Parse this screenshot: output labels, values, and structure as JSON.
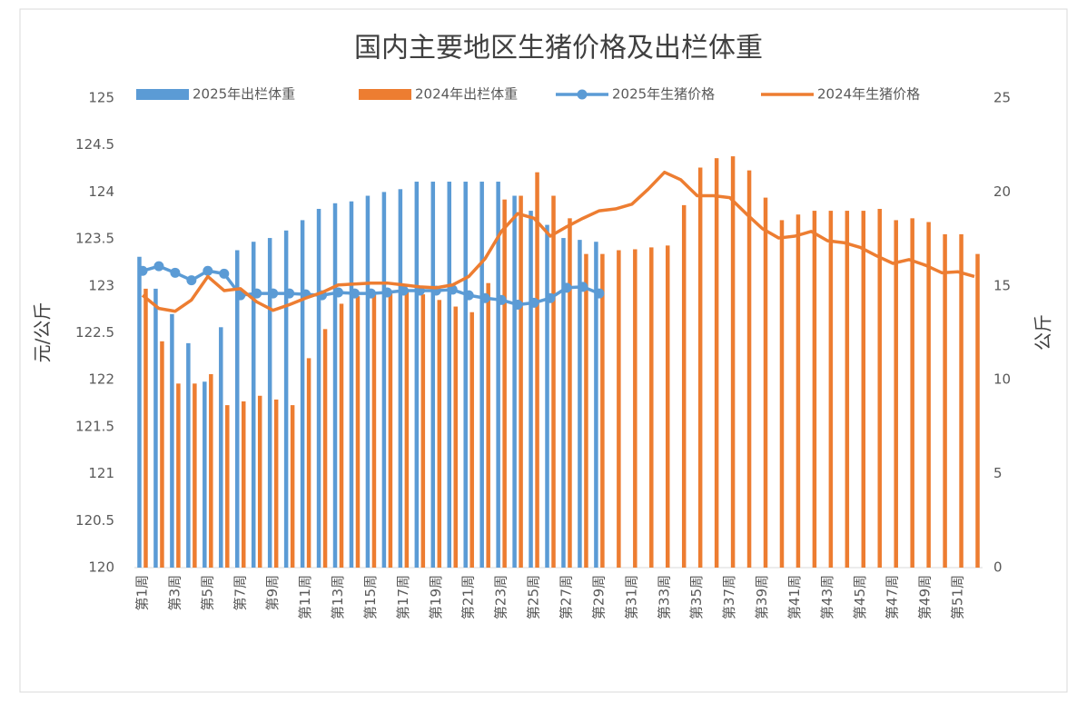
{
  "chart_data": {
    "type": "combo",
    "title": "国内主要地区生猪价格及出栏体重",
    "y_label": "元/公斤",
    "y2_label": "公斤",
    "categories": [
      "第1周",
      null,
      "第3周",
      null,
      "第5周",
      null,
      "第7周",
      null,
      "第9周",
      null,
      "第11周",
      null,
      "第13周",
      null,
      "第15周",
      null,
      "第17周",
      null,
      "第19周",
      null,
      "第21周",
      null,
      "第23周",
      null,
      "第25周",
      null,
      "第27周",
      null,
      "第29周",
      null,
      "第31周",
      null,
      "第33周",
      null,
      "第35周",
      null,
      "第37周",
      null,
      "第39周",
      null,
      "第41周",
      null,
      "第43周",
      null,
      "第45周",
      null,
      "第47周",
      null,
      "第49周",
      null,
      "第51周",
      null
    ],
    "ylim": [
      120,
      125
    ],
    "yticks": [
      120,
      120.5,
      121,
      121.5,
      122,
      122.5,
      123,
      123.5,
      124,
      124.5,
      125
    ],
    "y2lim": [
      0,
      25
    ],
    "y2ticks": [
      0,
      5,
      10,
      15,
      20,
      25
    ],
    "grid": false,
    "legend": "top",
    "series": [
      {
        "name": "2025年出栏体重",
        "type": "bar",
        "color": "#5b9bd5",
        "values": [
          123.31,
          122.97,
          122.7,
          122.39,
          121.98,
          122.56,
          123.38,
          123.47,
          123.51,
          123.59,
          123.7,
          123.82,
          123.88,
          123.9,
          123.96,
          124.0,
          124.03,
          124.11,
          124.11,
          124.11,
          124.11,
          124.11,
          124.11,
          123.96,
          123.8,
          123.65,
          123.51,
          123.49,
          123.47,
          null,
          null,
          null,
          null,
          null,
          null,
          null,
          null,
          null,
          null,
          null,
          null,
          null,
          null,
          null,
          null,
          null,
          null,
          null,
          null,
          null,
          null,
          null
        ]
      },
      {
        "name": "2024年出栏体重",
        "type": "bar",
        "color": "#ed7d31",
        "values": [
          122.97,
          122.41,
          121.96,
          121.96,
          122.06,
          121.73,
          121.77,
          121.83,
          121.79,
          121.73,
          122.23,
          122.54,
          122.81,
          122.89,
          122.93,
          122.95,
          122.95,
          122.91,
          122.85,
          122.78,
          122.72,
          123.03,
          123.92,
          123.96,
          124.21,
          123.96,
          123.72,
          123.34,
          123.34,
          123.38,
          123.39,
          123.41,
          123.43,
          123.86,
          124.26,
          124.36,
          124.38,
          124.23,
          123.94,
          123.7,
          123.76,
          123.8,
          123.8,
          123.8,
          123.8,
          123.82,
          123.7,
          123.72,
          123.68,
          123.55,
          123.55,
          123.34
        ]
      },
      {
        "name": "2025年生猪价格",
        "type": "line",
        "marker": true,
        "axis": "y2",
        "color": "#5b9bd5",
        "values": [
          15.8,
          16.05,
          15.7,
          15.3,
          15.8,
          15.65,
          14.5,
          14.6,
          14.6,
          14.6,
          14.55,
          14.5,
          14.65,
          14.6,
          14.6,
          14.65,
          14.75,
          14.75,
          14.75,
          14.8,
          14.5,
          14.35,
          14.25,
          14.0,
          14.1,
          14.35,
          14.9,
          14.95,
          14.6,
          null,
          null,
          null,
          null,
          null,
          null,
          null,
          null,
          null,
          null,
          null,
          null,
          null,
          null,
          null,
          null,
          null,
          null,
          null,
          null,
          null,
          null,
          null
        ]
      },
      {
        "name": "2024年生猪价格",
        "type": "line",
        "marker": false,
        "axis": "y2",
        "color": "#ed7d31",
        "values": [
          14.5,
          13.8,
          13.65,
          14.25,
          15.5,
          14.75,
          14.85,
          14.15,
          13.7,
          14.0,
          14.35,
          14.65,
          15.05,
          15.1,
          15.15,
          15.15,
          15.05,
          14.95,
          14.9,
          15.05,
          15.5,
          16.45,
          17.9,
          18.85,
          18.6,
          17.65,
          18.15,
          18.6,
          19.0,
          19.1,
          19.35,
          20.15,
          21.05,
          20.65,
          19.8,
          19.8,
          19.7,
          18.85,
          18.05,
          17.55,
          17.65,
          17.9,
          17.4,
          17.3,
          17.05,
          16.6,
          16.2,
          16.4,
          16.1,
          15.7,
          15.75,
          15.5
        ]
      }
    ]
  }
}
